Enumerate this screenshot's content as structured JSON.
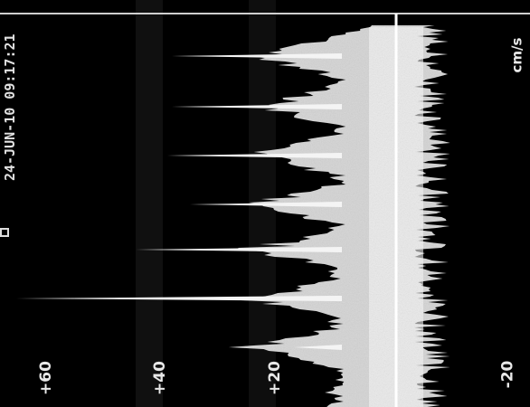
{
  "header": {
    "timestamp": "24-JUN-10 09:17:21"
  },
  "scale": {
    "ticks": [
      "+60",
      "+40",
      "+20",
      "-20"
    ],
    "unit": "cm/s"
  },
  "colors": {
    "background": "#000000",
    "signal": "#f2f2f2",
    "baseline": "#ffffff"
  }
}
